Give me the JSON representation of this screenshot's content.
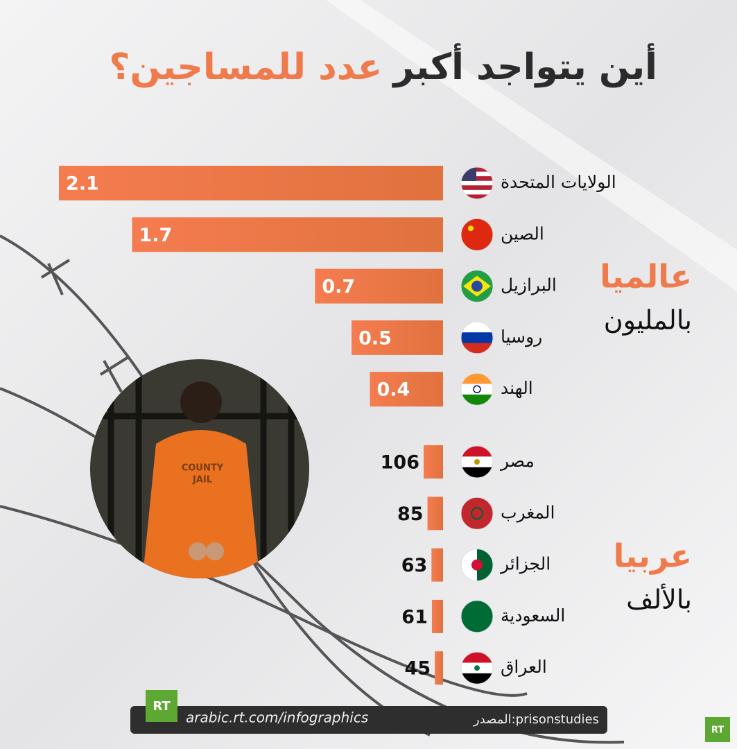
{
  "title": [
    "أين يتواجد أكبر",
    "عدد للمساجين؟"
  ],
  "chart_data": [
    {
      "type": "bar",
      "label": "عالميا",
      "unit": "بالمليون",
      "categories": [
        "الولايات المتحدة",
        "الصين",
        "البرازيل",
        "روسيا",
        "الهند"
      ],
      "values": [
        2.1,
        1.7,
        0.7,
        0.5,
        0.4
      ],
      "color": "#ef7a4c"
    },
    {
      "type": "bar",
      "label": "عربيا",
      "unit": "بالألف",
      "categories": [
        "مصر",
        "المغرب",
        "الجزائر",
        "السعودية",
        "العراق"
      ],
      "values": [
        106,
        85,
        63,
        61,
        45
      ],
      "color": "#ef7a4c"
    }
  ],
  "footer": {
    "url": "arabic.rt.com/infographics",
    "source": "المصدر:prisonstudies",
    "logo": "RT"
  }
}
